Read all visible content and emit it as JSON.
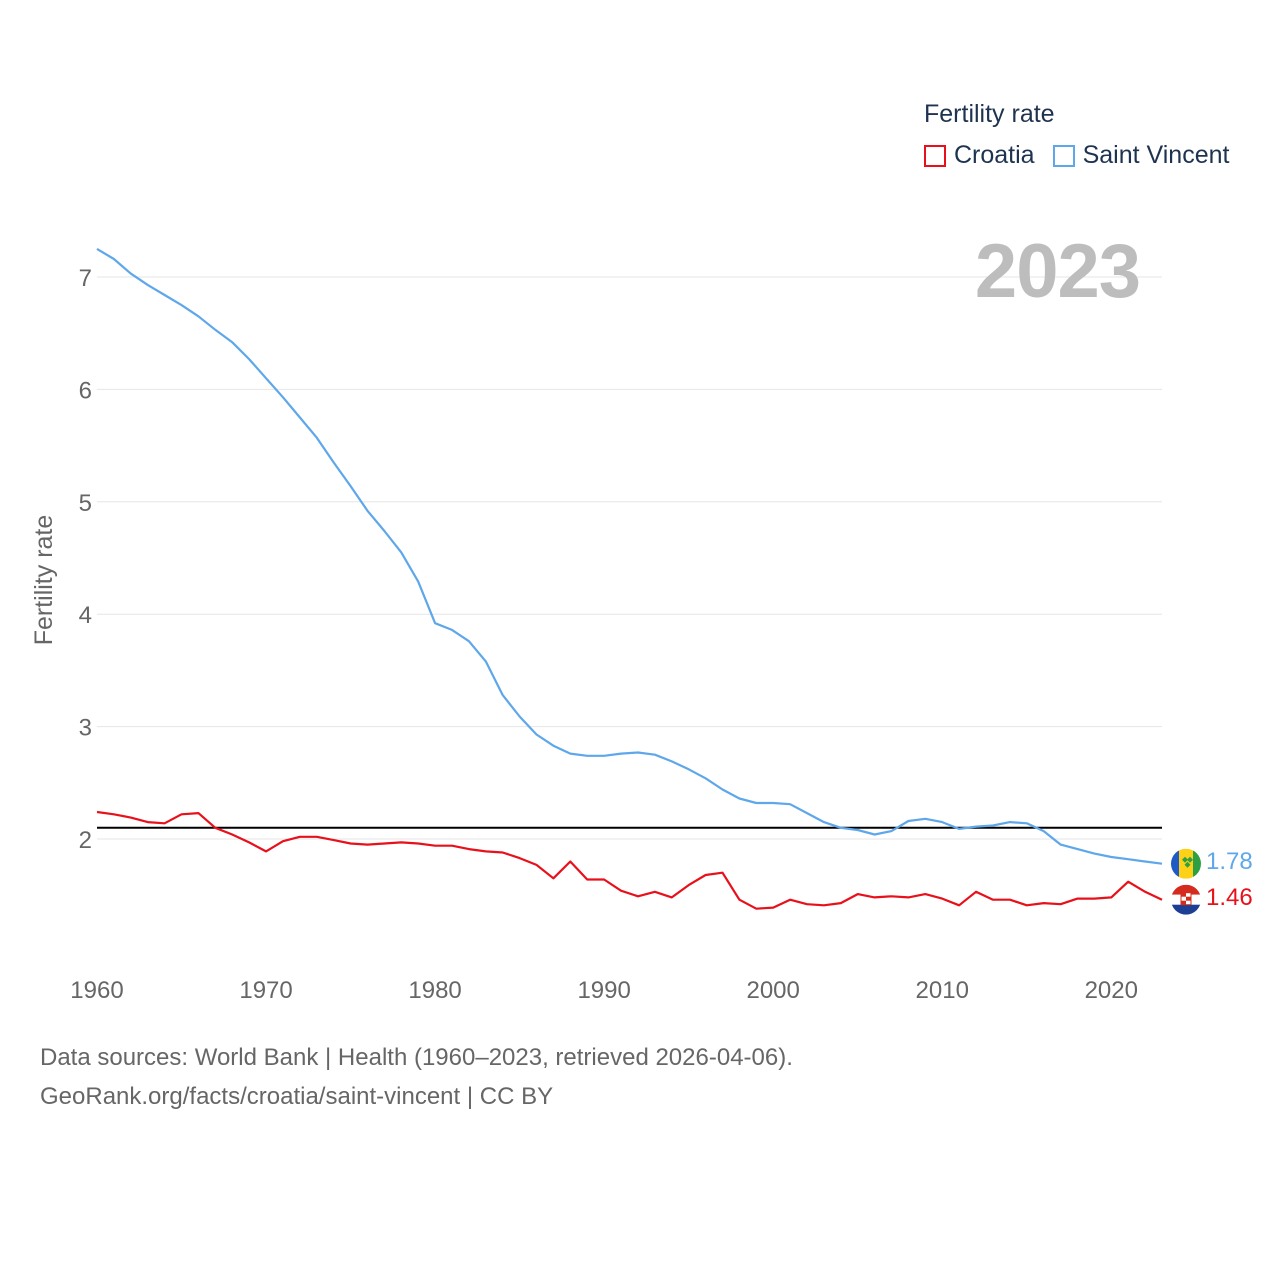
{
  "legend": {
    "title": "Fertility rate"
  },
  "year_label": "2023",
  "footer": {
    "line1": "Data sources: World Bank | Health (1960–2023, retrieved 2026-04-06).",
    "line2": "GeoRank.org/facts/croatia/saint-vincent | CC BY"
  },
  "chart_data": {
    "type": "line",
    "title": "Fertility rate",
    "xlabel": "",
    "ylabel": "Fertility rate",
    "xlim": [
      1960,
      2023
    ],
    "ylim": [
      1,
      7.3
    ],
    "x_ticks": [
      1960,
      1970,
      1980,
      1990,
      2000,
      2010,
      2020
    ],
    "y_ticks": [
      2,
      3,
      4,
      5,
      6,
      7
    ],
    "grid": true,
    "legend_position": "top-right",
    "reference_line": {
      "y": 2.1,
      "color": "#000000"
    },
    "x": [
      1960,
      1961,
      1962,
      1963,
      1964,
      1965,
      1966,
      1967,
      1968,
      1969,
      1970,
      1971,
      1972,
      1973,
      1974,
      1975,
      1976,
      1977,
      1978,
      1979,
      1980,
      1981,
      1982,
      1983,
      1984,
      1985,
      1986,
      1987,
      1988,
      1989,
      1990,
      1991,
      1992,
      1993,
      1994,
      1995,
      1996,
      1997,
      1998,
      1999,
      2000,
      2001,
      2002,
      2003,
      2004,
      2005,
      2006,
      2007,
      2008,
      2009,
      2010,
      2011,
      2012,
      2013,
      2014,
      2015,
      2016,
      2017,
      2018,
      2019,
      2020,
      2021,
      2022,
      2023
    ],
    "series": [
      {
        "name": "Croatia",
        "color": "#e8101a",
        "end_label": "1.46",
        "values": [
          2.24,
          2.22,
          2.19,
          2.15,
          2.14,
          2.22,
          2.23,
          2.1,
          2.04,
          1.97,
          1.89,
          1.98,
          2.02,
          2.02,
          1.99,
          1.96,
          1.95,
          1.96,
          1.97,
          1.96,
          1.94,
          1.94,
          1.91,
          1.89,
          1.88,
          1.83,
          1.77,
          1.65,
          1.8,
          1.64,
          1.64,
          1.54,
          1.49,
          1.53,
          1.48,
          1.59,
          1.68,
          1.7,
          1.46,
          1.38,
          1.39,
          1.46,
          1.42,
          1.41,
          1.43,
          1.51,
          1.48,
          1.49,
          1.48,
          1.51,
          1.47,
          1.41,
          1.53,
          1.46,
          1.46,
          1.41,
          1.43,
          1.42,
          1.47,
          1.47,
          1.48,
          1.62,
          1.53,
          1.46
        ]
      },
      {
        "name": "Saint Vincent",
        "color": "#5ea7ea",
        "end_label": "1.78",
        "values": [
          7.25,
          7.16,
          7.03,
          6.93,
          6.84,
          6.75,
          6.65,
          6.53,
          6.42,
          6.27,
          6.1,
          5.93,
          5.75,
          5.57,
          5.35,
          5.14,
          4.92,
          4.74,
          4.55,
          4.29,
          3.92,
          3.86,
          3.76,
          3.58,
          3.28,
          3.09,
          2.93,
          2.83,
          2.76,
          2.74,
          2.74,
          2.76,
          2.77,
          2.75,
          2.69,
          2.62,
          2.54,
          2.44,
          2.36,
          2.32,
          2.32,
          2.31,
          2.23,
          2.15,
          2.1,
          2.08,
          2.04,
          2.07,
          2.16,
          2.18,
          2.15,
          2.09,
          2.11,
          2.12,
          2.15,
          2.14,
          2.07,
          1.95,
          1.91,
          1.87,
          1.84,
          1.82,
          1.8,
          1.78
        ]
      }
    ]
  }
}
